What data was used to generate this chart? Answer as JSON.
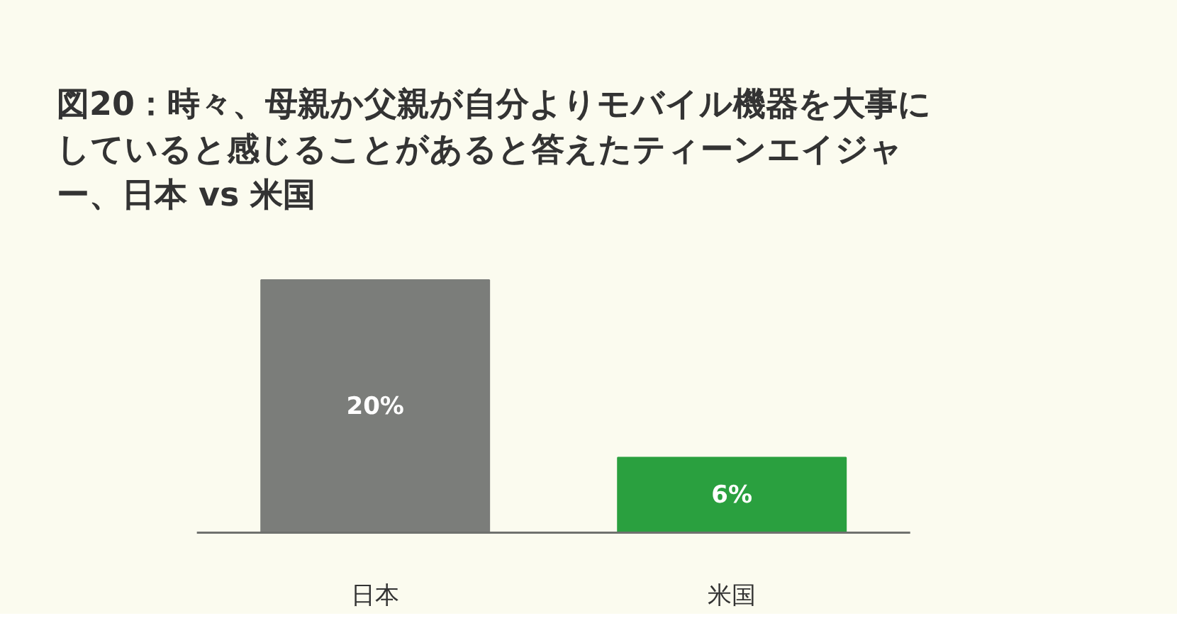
{
  "chart_data": {
    "type": "bar",
    "title": "図20：時々、母親か父親が自分よりモバイル機器を大事にしていると感じることがあると答えたティーンエイジャー、日本 vs 米国",
    "categories": [
      "日本",
      "米国"
    ],
    "values": [
      20,
      6
    ],
    "colors": [
      "#7b7d7a",
      "#2aa03f"
    ],
    "value_labels": [
      "20%",
      "6%"
    ],
    "grid": false
  }
}
